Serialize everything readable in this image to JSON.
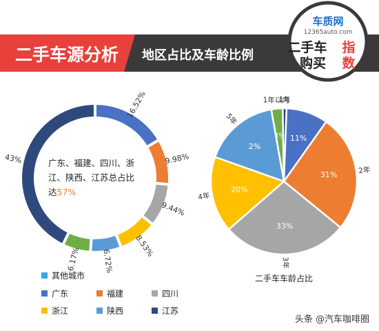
{
  "header": {
    "title": "二手车源分析",
    "subtitle": "地区占比及车龄比例",
    "logo_main": "车质网",
    "logo_url": "12365auto.com",
    "logo_line1": "二手车",
    "logo_line1_accent": "指",
    "logo_line2": "购买",
    "logo_line2_accent": "数"
  },
  "colors": {
    "header_red": "#e8413c",
    "header_dark": "#3a3a3a",
    "navy": "#2e4a7d",
    "blue": "#4a72c4",
    "orange": "#ed7d31",
    "gray": "#a6a6a6",
    "yellow": "#ffc000",
    "lightblue": "#5b9bd5",
    "green": "#70ad47",
    "cyan": "#3aa7e0"
  },
  "chart_data": [
    {
      "type": "donut",
      "center_text_line1": "广东、福建、四川、浙",
      "center_text_line2": "江、陕西、江苏总占比",
      "center_text_line3_prefix": "达",
      "center_text_highlight": "57%",
      "slices": [
        {
          "name": "广东",
          "value": 16.52,
          "label": "16.52%",
          "color": "#4a72c4"
        },
        {
          "name": "福建",
          "value": 9.98,
          "label": "9.98%",
          "color": "#ed7d31"
        },
        {
          "name": "四川",
          "value": 9.44,
          "label": "9.44%",
          "color": "#a6a6a6"
        },
        {
          "name": "浙江",
          "value": 8.53,
          "label": "8.53%",
          "color": "#ffc000"
        },
        {
          "name": "陕西",
          "value": 6.72,
          "label": "6.72%",
          "color": "#5b9bd5"
        },
        {
          "name": "江苏",
          "value": 6.17,
          "label": "6.17%",
          "color": "#70ad47"
        },
        {
          "name": "其他城市",
          "value": 43,
          "label": "43%",
          "color": "#2e4a7d"
        }
      ],
      "legend": [
        {
          "name": "其他城市",
          "color": "#3aa7e0"
        },
        {
          "name": "广东",
          "color": "#4a72c4"
        },
        {
          "name": "福建",
          "color": "#ed7d31"
        },
        {
          "name": "四川",
          "color": "#a6a6a6"
        },
        {
          "name": "浙江",
          "color": "#ffc000"
        },
        {
          "name": "陕西",
          "color": "#5b9bd5"
        },
        {
          "name": "江苏",
          "color": "#2e4a7d"
        }
      ]
    },
    {
      "type": "pie",
      "title": "二手车车龄占比",
      "slices": [
        {
          "name": "1年以内",
          "value": 3,
          "label": "3%",
          "color": "#70ad47"
        },
        {
          "name": "1年",
          "value": 1,
          "label": "1%",
          "color": "#4a72c4"
        },
        {
          "name": "2年",
          "value": 11,
          "label": "11%",
          "color": "#4a72c4"
        },
        {
          "name": "3年",
          "value": 31,
          "label": "31%",
          "color": "#ed7d31"
        },
        {
          "name": "4年",
          "value": 33,
          "label": "33%",
          "color": "#a6a6a6"
        },
        {
          "name": "5年",
          "value": 20,
          "label": "20%",
          "color": "#ffc000"
        },
        {
          "name": "",
          "value": 2,
          "label": "2%",
          "color": "#5b9bd5"
        }
      ]
    }
  ],
  "footer": {
    "watermark": "头条 @汽车咖啡圈"
  }
}
